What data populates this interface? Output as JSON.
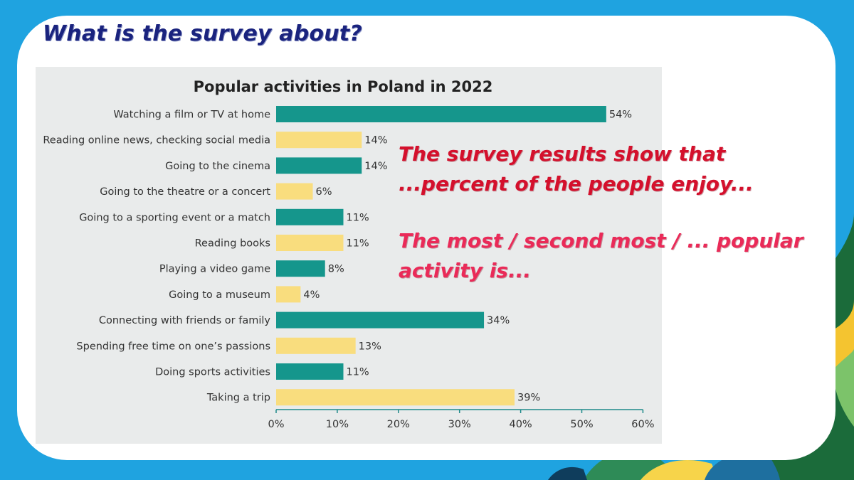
{
  "slide": {
    "title": "What is the survey about?",
    "prompt_1": [
      "The survey results show that",
      "...percent of the people enjoy..."
    ],
    "prompt_2": [
      "The most / second most / ... popular",
      "activity is..."
    ]
  },
  "colors": {
    "background": "#1fa3e0",
    "card": "#ffffff",
    "title": "#1a237e",
    "panel": "#e9ebeb",
    "bar_teal": "#15968c",
    "bar_yellow": "#f9dd7e",
    "prompt_1": "#d4102c",
    "prompt_2": "#ea2a58"
  },
  "chart_data": {
    "type": "bar",
    "orientation": "horizontal",
    "title": "Popular activities in Poland in 2022",
    "xlabel": "",
    "ylabel": "",
    "xlim": [
      0,
      60
    ],
    "x_ticks": [
      0,
      10,
      20,
      30,
      40,
      50,
      60
    ],
    "tick_suffix": "%",
    "grid": false,
    "categories": [
      "Watching a film or TV at home",
      "Reading online news, checking social media",
      "Going to the cinema",
      "Going to the theatre or a concert",
      "Going to a sporting event or a match",
      "Reading books",
      "Playing a video game",
      "Going to a museum",
      "Connecting with friends or family",
      "Spending free time on one’s passions",
      "Doing sports activities",
      "Taking a trip"
    ],
    "values": [
      54,
      14,
      14,
      6,
      11,
      11,
      8,
      4,
      34,
      13,
      11,
      39
    ],
    "value_labels": [
      "54%",
      "14%",
      "14%",
      "6%",
      "11%",
      "11%",
      "8%",
      "4%",
      "34%",
      "13%",
      "11%",
      "39%"
    ],
    "bar_colors": [
      "teal",
      "yellow",
      "teal",
      "yellow",
      "teal",
      "yellow",
      "teal",
      "yellow",
      "teal",
      "yellow",
      "teal",
      "yellow"
    ]
  }
}
